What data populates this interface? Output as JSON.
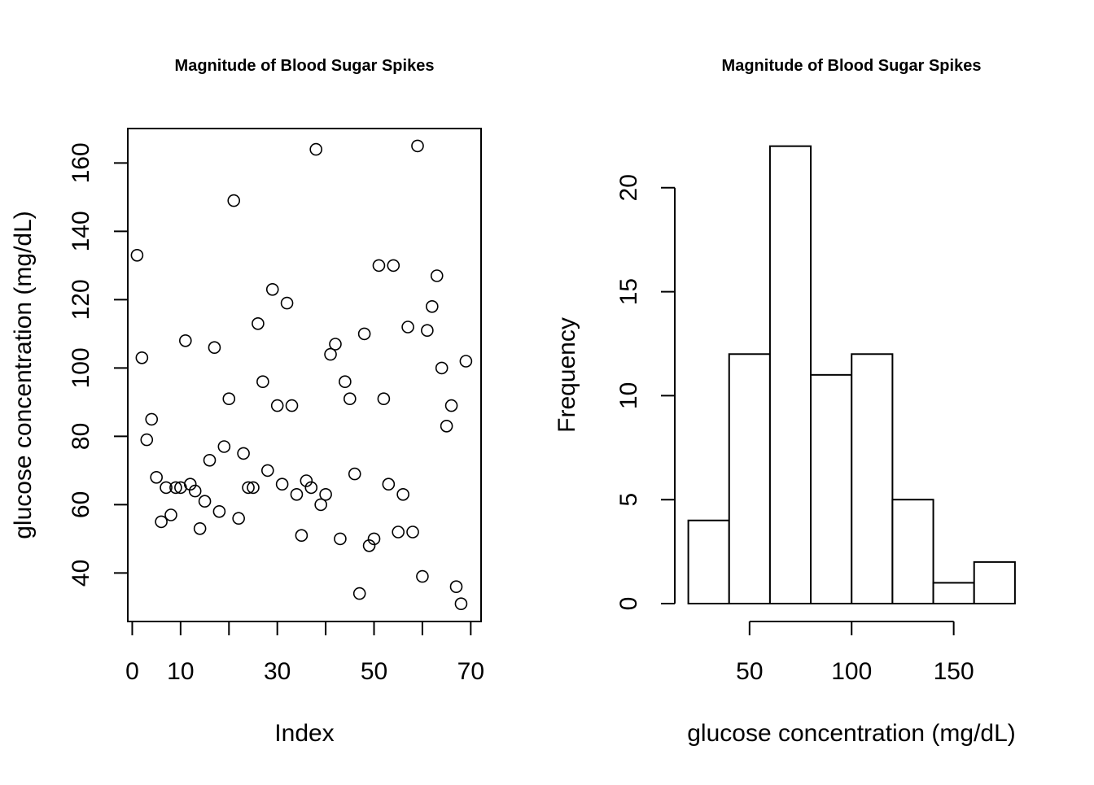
{
  "chart_data": [
    {
      "type": "scatter",
      "title": "Magnitude of Blood Sugar Spikes",
      "xlabel": "Index",
      "ylabel": "glucose concentration (mg/dL)",
      "xlim": [
        0,
        70
      ],
      "ylim": [
        31,
        165
      ],
      "x_ticks": [
        0,
        10,
        30,
        50,
        70
      ],
      "y_ticks": [
        40,
        60,
        80,
        100,
        120,
        140,
        160
      ],
      "grid": false,
      "legend": "none",
      "points": {
        "x": [
          1,
          2,
          3,
          4,
          5,
          6,
          7,
          8,
          9,
          10,
          11,
          12,
          13,
          14,
          15,
          16,
          17,
          18,
          19,
          20,
          21,
          22,
          23,
          24,
          25,
          26,
          27,
          28,
          29,
          30,
          31,
          32,
          33,
          34,
          35,
          36,
          37,
          38,
          39,
          40,
          41,
          42,
          43,
          44,
          45,
          46,
          47,
          48,
          49,
          50,
          51,
          52,
          53,
          54,
          55,
          56,
          57,
          58,
          59,
          60,
          61,
          62,
          63,
          64,
          65,
          66,
          67,
          68,
          69
        ],
        "y": [
          133,
          103,
          79,
          85,
          68,
          55,
          65,
          57,
          65,
          65,
          108,
          66,
          64,
          53,
          61,
          73,
          106,
          58,
          77,
          91,
          149,
          56,
          75,
          65,
          65,
          113,
          96,
          70,
          123,
          89,
          66,
          119,
          89,
          63,
          51,
          67,
          65,
          164,
          60,
          63,
          104,
          107,
          50,
          96,
          91,
          69,
          34,
          110,
          48,
          50,
          130,
          91,
          66,
          130,
          52,
          63,
          112,
          52,
          165,
          39,
          111,
          118,
          127,
          100,
          83,
          89,
          36,
          31,
          102
        ]
      }
    },
    {
      "type": "bar",
      "subtype": "histogram",
      "title": "Magnitude of Blood Sugar Spikes",
      "xlabel": "glucose concentration (mg/dL)",
      "ylabel": "Frequency",
      "bins": [
        [
          20,
          40
        ],
        [
          40,
          60
        ],
        [
          60,
          80
        ],
        [
          80,
          100
        ],
        [
          100,
          120
        ],
        [
          120,
          140
        ],
        [
          140,
          160
        ],
        [
          160,
          180
        ]
      ],
      "values": [
        4,
        12,
        22,
        11,
        12,
        5,
        1,
        2
      ],
      "x_ticks": [
        50,
        100,
        150
      ],
      "y_ticks": [
        0,
        5,
        10,
        15,
        20
      ],
      "xlim": [
        20,
        180
      ],
      "ylim": [
        0,
        22
      ],
      "grid": false,
      "legend": "none"
    }
  ]
}
